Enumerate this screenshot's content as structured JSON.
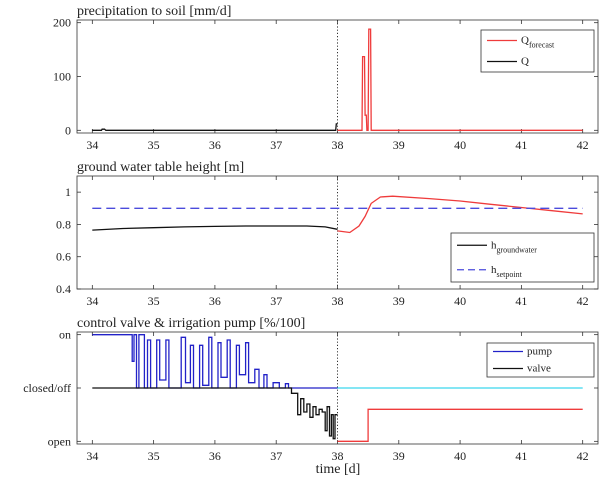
{
  "x_ticks": [
    "34",
    "35",
    "36",
    "37",
    "38",
    "39",
    "40",
    "41",
    "42"
  ],
  "xlabel": "time [d]",
  "chart_data": [
    {
      "type": "line",
      "title": "precipitation to soil [mm/d]",
      "xlim": [
        33.75,
        42.25
      ],
      "ylim": [
        -5,
        205
      ],
      "y_ticks": [
        "0",
        "100",
        "200"
      ],
      "y_tick_values": [
        0,
        100,
        200
      ],
      "legend": {
        "placement": "top-right"
      },
      "series": [
        {
          "name": "Q_forecast",
          "label_main": "Q",
          "label_sub": "forecast",
          "color": "#ef3b3b",
          "points": [
            [
              38.0,
              0
            ],
            [
              38.4,
              0
            ],
            [
              38.41,
              137
            ],
            [
              38.44,
              137
            ],
            [
              38.45,
              28
            ],
            [
              38.47,
              28
            ],
            [
              38.48,
              0
            ],
            [
              38.5,
              0
            ],
            [
              38.51,
              188
            ],
            [
              38.54,
              188
            ],
            [
              38.55,
              0
            ],
            [
              42.0,
              0
            ]
          ]
        },
        {
          "name": "Q",
          "label_main": "Q",
          "label_sub": "",
          "color": "#111111",
          "points": [
            [
              34.0,
              0
            ],
            [
              34.15,
              0
            ],
            [
              34.16,
              2
            ],
            [
              34.2,
              2
            ],
            [
              34.22,
              0
            ],
            [
              37.97,
              0
            ],
            [
              37.98,
              12
            ],
            [
              38.0,
              12
            ]
          ]
        }
      ]
    },
    {
      "type": "line",
      "title": "ground water table height [m]",
      "xlim": [
        33.75,
        42.25
      ],
      "ylim": [
        0.4,
        1.1
      ],
      "y_ticks": [
        "0.4",
        "0.6",
        "0.8",
        "1"
      ],
      "y_tick_values": [
        0.4,
        0.6,
        0.8,
        1.0
      ],
      "legend": {
        "placement": "bottom-right"
      },
      "series": [
        {
          "name": "h_groundwater",
          "label_main": "h",
          "label_sub": "groundwater",
          "color": "#111111",
          "points": [
            [
              34.0,
              0.765
            ],
            [
              34.5,
              0.775
            ],
            [
              35.0,
              0.78
            ],
            [
              35.5,
              0.785
            ],
            [
              36.0,
              0.788
            ],
            [
              36.5,
              0.79
            ],
            [
              37.0,
              0.79
            ],
            [
              37.5,
              0.79
            ],
            [
              37.8,
              0.785
            ],
            [
              38.0,
              0.77
            ]
          ]
        },
        {
          "name": "h_forecast",
          "label_main": "",
          "label_sub": "",
          "color": "#ef3b3b",
          "points": [
            [
              38.0,
              0.76
            ],
            [
              38.2,
              0.75
            ],
            [
              38.35,
              0.79
            ],
            [
              38.45,
              0.85
            ],
            [
              38.55,
              0.93
            ],
            [
              38.7,
              0.97
            ],
            [
              38.9,
              0.975
            ],
            [
              39.5,
              0.96
            ],
            [
              40.0,
              0.945
            ],
            [
              40.5,
              0.925
            ],
            [
              41.0,
              0.905
            ],
            [
              41.5,
              0.885
            ],
            [
              42.0,
              0.865
            ]
          ]
        },
        {
          "name": "h_setpoint",
          "label_main": "h",
          "label_sub": "setpoint",
          "color": "#4b4bdc",
          "dash": true,
          "points": [
            [
              34.0,
              0.9
            ],
            [
              42.0,
              0.9
            ]
          ]
        }
      ]
    },
    {
      "type": "line",
      "title": "control valve & irrigation pump [%/100]",
      "xlim": [
        33.75,
        42.25
      ],
      "ylim": [
        -1.05,
        1.05
      ],
      "y_ticks": [
        "open",
        "closed/off",
        "on"
      ],
      "y_tick_values": [
        -1,
        0,
        1
      ],
      "legend": {
        "placement": "top-right"
      },
      "series": [
        {
          "name": "pump",
          "label_main": "pump",
          "label_sub": "",
          "color": "#2222c8",
          "points": [
            [
              34.0,
              1
            ],
            [
              34.65,
              1
            ],
            [
              34.65,
              0.5
            ],
            [
              34.68,
              0.5
            ],
            [
              34.68,
              1
            ],
            [
              34.72,
              1
            ],
            [
              34.72,
              0
            ],
            [
              34.76,
              0
            ],
            [
              34.76,
              1
            ],
            [
              34.85,
              1
            ],
            [
              34.85,
              0
            ],
            [
              34.9,
              0
            ],
            [
              34.9,
              0.9
            ],
            [
              34.95,
              0.9
            ],
            [
              34.95,
              0
            ],
            [
              35.05,
              0
            ],
            [
              35.05,
              0.9
            ],
            [
              35.1,
              0.9
            ],
            [
              35.1,
              0.15
            ],
            [
              35.2,
              0.15
            ],
            [
              35.2,
              0.9
            ],
            [
              35.25,
              0.9
            ],
            [
              35.25,
              0
            ],
            [
              35.45,
              0
            ],
            [
              35.45,
              0.95
            ],
            [
              35.52,
              0.95
            ],
            [
              35.52,
              0.1
            ],
            [
              35.6,
              0.1
            ],
            [
              35.6,
              0.8
            ],
            [
              35.65,
              0.8
            ],
            [
              35.65,
              0
            ],
            [
              35.75,
              0
            ],
            [
              35.75,
              0.8
            ],
            [
              35.8,
              0.8
            ],
            [
              35.8,
              0.05
            ],
            [
              35.9,
              0.05
            ],
            [
              35.9,
              0.95
            ],
            [
              35.95,
              0.95
            ],
            [
              35.95,
              0
            ],
            [
              36.05,
              0
            ],
            [
              36.05,
              0.85
            ],
            [
              36.1,
              0.85
            ],
            [
              36.1,
              0.2
            ],
            [
              36.2,
              0.2
            ],
            [
              36.2,
              0.9
            ],
            [
              36.25,
              0.9
            ],
            [
              36.25,
              0
            ],
            [
              36.35,
              0
            ],
            [
              36.35,
              0.8
            ],
            [
              36.4,
              0.8
            ],
            [
              36.4,
              0.25
            ],
            [
              36.5,
              0.25
            ],
            [
              36.5,
              0.85
            ],
            [
              36.55,
              0.85
            ],
            [
              36.55,
              0.1
            ],
            [
              36.65,
              0.1
            ],
            [
              36.65,
              0.35
            ],
            [
              36.72,
              0.35
            ],
            [
              36.72,
              0
            ],
            [
              36.8,
              0
            ],
            [
              36.8,
              0.25
            ],
            [
              36.85,
              0.25
            ],
            [
              36.85,
              0
            ],
            [
              36.95,
              0
            ],
            [
              36.95,
              0.1
            ],
            [
              37.05,
              0.1
            ],
            [
              37.05,
              0
            ],
            [
              37.15,
              0
            ],
            [
              37.15,
              0.08
            ],
            [
              37.2,
              0.08
            ],
            [
              37.2,
              0
            ],
            [
              38.0,
              0
            ]
          ]
        },
        {
          "name": "valve",
          "label_main": "valve",
          "label_sub": "",
          "color": "#111111",
          "points": [
            [
              34.0,
              0
            ],
            [
              37.25,
              0
            ],
            [
              37.25,
              -0.1
            ],
            [
              37.35,
              -0.1
            ],
            [
              37.35,
              -0.5
            ],
            [
              37.4,
              -0.5
            ],
            [
              37.4,
              -0.2
            ],
            [
              37.45,
              -0.2
            ],
            [
              37.45,
              -0.45
            ],
            [
              37.5,
              -0.45
            ],
            [
              37.5,
              -0.3
            ],
            [
              37.55,
              -0.3
            ],
            [
              37.55,
              -0.55
            ],
            [
              37.6,
              -0.55
            ],
            [
              37.6,
              -0.35
            ],
            [
              37.65,
              -0.35
            ],
            [
              37.65,
              -0.5
            ],
            [
              37.7,
              -0.5
            ],
            [
              37.7,
              -0.4
            ],
            [
              37.75,
              -0.4
            ],
            [
              37.75,
              -0.45
            ],
            [
              37.8,
              -0.45
            ],
            [
              37.8,
              -0.8
            ],
            [
              37.83,
              -0.8
            ],
            [
              37.83,
              -0.35
            ],
            [
              37.87,
              -0.35
            ],
            [
              37.87,
              -0.9
            ],
            [
              37.9,
              -0.9
            ],
            [
              37.9,
              -0.5
            ],
            [
              37.93,
              -0.5
            ],
            [
              37.93,
              -0.95
            ],
            [
              37.96,
              -0.95
            ],
            [
              37.96,
              -0.5
            ],
            [
              38.0,
              -0.5
            ]
          ]
        },
        {
          "name": "pump_forecast",
          "label_main": "",
          "label_sub": "",
          "color": "#3ad6ee",
          "points": [
            [
              38.0,
              0
            ],
            [
              42.0,
              0
            ]
          ]
        },
        {
          "name": "valve_forecast",
          "label_main": "",
          "label_sub": "",
          "color": "#ef3b3b",
          "points": [
            [
              38.0,
              -1
            ],
            [
              38.5,
              -1
            ],
            [
              38.5,
              -0.4
            ],
            [
              42.0,
              -0.4
            ]
          ]
        }
      ]
    }
  ]
}
